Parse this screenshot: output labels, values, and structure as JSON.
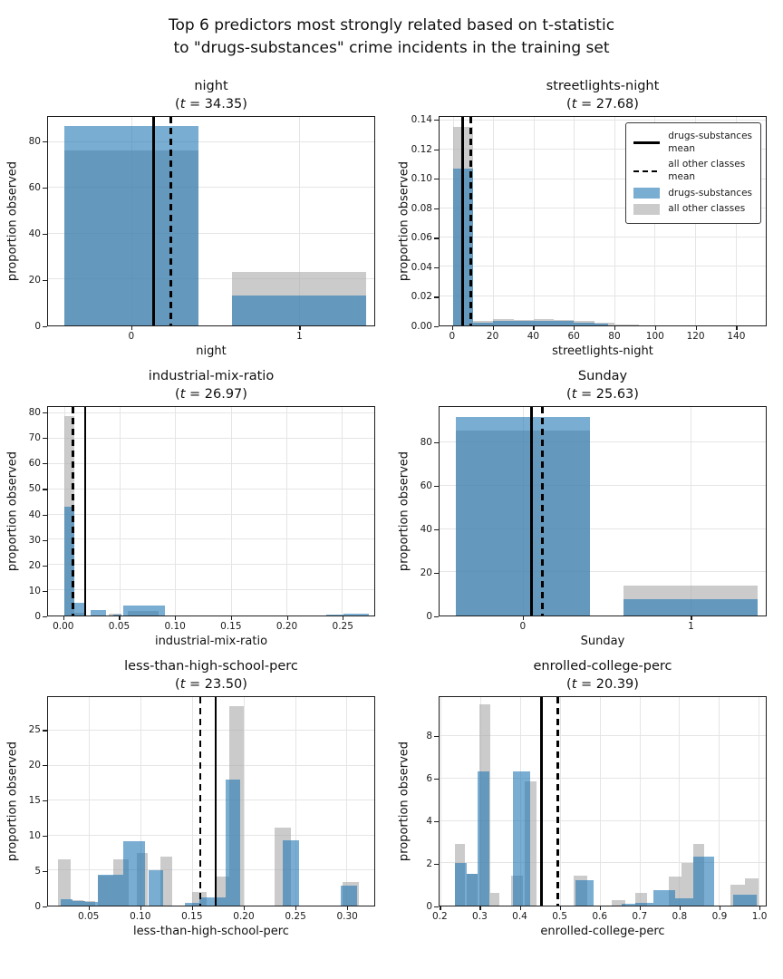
{
  "figure": {
    "title_line1": "Top 6 predictors most strongly related based on t-statistic",
    "title_line2": "to \"drugs-substances\" crime incidents in the training set"
  },
  "colors": {
    "drugs_fill": "rgba(31,119,180,0.6)",
    "other_fill": "rgba(168,168,168,0.6)",
    "mean_line": "#000000",
    "grid": "#e5e5e5",
    "spine": "#1c1c1c"
  },
  "legend": {
    "entries": [
      {
        "sample": "solid-line",
        "label_lines": [
          "drugs-substances",
          "mean"
        ]
      },
      {
        "sample": "dashed-line",
        "label_lines": [
          "all other classes",
          "mean"
        ]
      },
      {
        "sample": "patch-drugs",
        "label_lines": [
          "drugs-substances"
        ]
      },
      {
        "sample": "patch-other",
        "label_lines": [
          "all other classes"
        ]
      }
    ]
  },
  "chart_data": [
    {
      "type": "histogram-overlay",
      "title": "night",
      "t_value": "34.35",
      "xlabel": "night",
      "ylabel": "proportion observed",
      "xlim": [
        -0.5,
        1.45
      ],
      "ymax": 91,
      "xticks": [
        0,
        1
      ],
      "xtick_labels": [
        "0",
        "1"
      ],
      "yticks": [
        0,
        20,
        40,
        60,
        80
      ],
      "ytick_labels": [
        "0",
        "20",
        "40",
        "60",
        "80"
      ],
      "mean_drugs": 0.13,
      "mean_other": 0.235,
      "drugs_bars": [
        [
          -0.4,
          0.4,
          87.0
        ],
        [
          0.6,
          1.4,
          13.0
        ]
      ],
      "other_bars": [
        [
          -0.4,
          0.4,
          76.5
        ],
        [
          0.6,
          1.4,
          23.5
        ]
      ],
      "show_legend": false
    },
    {
      "type": "histogram-overlay",
      "title": "streetlights-night",
      "t_value": "27.68",
      "xlabel": "streetlights-night",
      "ylabel": "proportion observed",
      "xlim": [
        -6.6,
        155
      ],
      "ymax": 0.1425,
      "xticks": [
        0,
        20,
        40,
        60,
        80,
        100,
        120,
        140
      ],
      "xtick_labels": [
        "0",
        "20",
        "40",
        "60",
        "80",
        "100",
        "120",
        "140"
      ],
      "yticks": [
        0,
        0.02,
        0.04,
        0.06,
        0.08,
        0.1,
        0.12,
        0.14
      ],
      "ytick_labels": [
        "0.00",
        "0.02",
        "0.04",
        "0.06",
        "0.08",
        "0.10",
        "0.12",
        "0.14"
      ],
      "mean_drugs": 4.8,
      "mean_other": 8.8,
      "drugs_bars": [
        [
          0,
          10,
          0.1075
        ],
        [
          10,
          20,
          0.002
        ],
        [
          20,
          30,
          0.003
        ],
        [
          30,
          40,
          0.003
        ],
        [
          40,
          50,
          0.003
        ],
        [
          50,
          60,
          0.0028
        ],
        [
          60,
          70,
          0.002
        ],
        [
          70,
          77,
          0.001
        ]
      ],
      "other_bars": [
        [
          0,
          10,
          0.136
        ],
        [
          10,
          20,
          0.003
        ],
        [
          20,
          30,
          0.0042
        ],
        [
          30,
          40,
          0.004
        ],
        [
          40,
          50,
          0.0042
        ],
        [
          50,
          60,
          0.0035
        ],
        [
          60,
          70,
          0.003
        ],
        [
          70,
          80,
          0.002
        ],
        [
          80,
          92,
          0.0008
        ]
      ],
      "show_legend": true
    },
    {
      "type": "histogram-overlay",
      "title": "industrial-mix-ratio",
      "t_value": "26.97",
      "xlabel": "industrial-mix-ratio",
      "ylabel": "proportion observed",
      "xlim": [
        -0.0144,
        0.279
      ],
      "ymax": 82.5,
      "xticks": [
        0,
        0.05,
        0.1,
        0.15,
        0.2,
        0.25
      ],
      "xtick_labels": [
        "0.00",
        "0.05",
        "0.10",
        "0.15",
        "0.20",
        "0.25"
      ],
      "yticks": [
        0,
        10,
        20,
        30,
        40,
        50,
        60,
        70,
        80
      ],
      "ytick_labels": [
        "0",
        "10",
        "20",
        "30",
        "40",
        "50",
        "60",
        "70",
        "80"
      ],
      "mean_drugs": 0.019,
      "mean_other": 0.008,
      "drugs_bars": [
        [
          0,
          0.0095,
          43
        ],
        [
          0.0095,
          0.019,
          5
        ],
        [
          0.024,
          0.038,
          2
        ],
        [
          0.044,
          0.052,
          0.4
        ],
        [
          0.053,
          0.091,
          4
        ],
        [
          0.236,
          0.251,
          0.35
        ],
        [
          0.251,
          0.274,
          0.8
        ]
      ],
      "other_bars": [
        [
          0,
          0.0095,
          79
        ],
        [
          0.0095,
          0.019,
          1.2
        ],
        [
          0.04,
          0.052,
          0.6
        ],
        [
          0.057,
          0.085,
          1.8
        ]
      ],
      "show_legend": false
    },
    {
      "type": "histogram-overlay",
      "title": "Sunday",
      "t_value": "25.63",
      "xlabel": "Sunday",
      "ylabel": "proportion observed",
      "xlim": [
        -0.5,
        1.45
      ],
      "ymax": 96.5,
      "xticks": [
        0,
        1
      ],
      "xtick_labels": [
        "0",
        "1"
      ],
      "yticks": [
        0,
        20,
        40,
        60,
        80
      ],
      "ytick_labels": [
        "0",
        "20",
        "40",
        "60",
        "80"
      ],
      "mean_drugs": 0.05,
      "mean_other": 0.115,
      "drugs_bars": [
        [
          -0.4,
          0.4,
          92.0
        ],
        [
          0.6,
          1.4,
          7.4
        ]
      ],
      "other_bars": [
        [
          -0.4,
          0.4,
          85.5
        ],
        [
          0.6,
          1.4,
          13.7
        ]
      ],
      "show_legend": false
    },
    {
      "type": "histogram-overlay",
      "title": "less-than-high-school-perc",
      "t_value": "23.50",
      "xlabel": "less-than-high-school-perc",
      "ylabel": "proportion observed",
      "xlim": [
        0.01,
        0.327
      ],
      "ymax": 29.8,
      "xticks": [
        0.05,
        0.1,
        0.15,
        0.2,
        0.25,
        0.3
      ],
      "xtick_labels": [
        "0.05",
        "0.10",
        "0.15",
        "0.20",
        "0.25",
        "0.30"
      ],
      "yticks": [
        0,
        5,
        10,
        15,
        20,
        25
      ],
      "ytick_labels": [
        "0",
        "5",
        "10",
        "15",
        "20",
        "25"
      ],
      "mean_drugs": 0.173,
      "mean_other": 0.158,
      "drugs_bars": [
        [
          0.022,
          0.034,
          0.9
        ],
        [
          0.034,
          0.046,
          0.65
        ],
        [
          0.046,
          0.058,
          0.55
        ],
        [
          0.058,
          0.083,
          4.4
        ],
        [
          0.083,
          0.104,
          9.2
        ],
        [
          0.108,
          0.122,
          5.0
        ],
        [
          0.143,
          0.157,
          0.4
        ],
        [
          0.157,
          0.17,
          1.2
        ],
        [
          0.17,
          0.183,
          1.2
        ],
        [
          0.183,
          0.197,
          18.0
        ],
        [
          0.238,
          0.254,
          9.3
        ],
        [
          0.294,
          0.31,
          2.8
        ]
      ],
      "other_bars": [
        [
          0.02,
          0.032,
          6.6
        ],
        [
          0.032,
          0.044,
          0.8
        ],
        [
          0.044,
          0.056,
          0.7
        ],
        [
          0.058,
          0.073,
          4.3
        ],
        [
          0.073,
          0.088,
          6.6
        ],
        [
          0.096,
          0.107,
          7.5
        ],
        [
          0.119,
          0.131,
          7.0
        ],
        [
          0.15,
          0.164,
          2.0
        ],
        [
          0.172,
          0.186,
          4.2
        ],
        [
          0.186,
          0.2,
          28.5
        ],
        [
          0.23,
          0.246,
          11.1
        ],
        [
          0.296,
          0.312,
          3.4
        ]
      ],
      "show_legend": false
    },
    {
      "type": "histogram-overlay",
      "title": "enrolled-college-perc",
      "t_value": "20.39",
      "xlabel": "enrolled-college-perc",
      "ylabel": "proportion observed",
      "xlim": [
        0.197,
        1.018
      ],
      "ymax": 9.85,
      "xticks": [
        0.2,
        0.3,
        0.4,
        0.5,
        0.6,
        0.7,
        0.8,
        0.9,
        1.0
      ],
      "xtick_labels": [
        "0.2",
        "0.3",
        "0.4",
        "0.5",
        "0.6",
        "0.7",
        "0.8",
        "0.9",
        "1.0"
      ],
      "yticks": [
        0,
        2,
        4,
        6,
        8
      ],
      "ytick_labels": [
        "0",
        "2",
        "4",
        "6",
        "8"
      ],
      "mean_drugs": 0.453,
      "mean_other": 0.494,
      "drugs_bars": [
        [
          0.235,
          0.265,
          2.0
        ],
        [
          0.265,
          0.292,
          1.5
        ],
        [
          0.293,
          0.322,
          6.35
        ],
        [
          0.381,
          0.425,
          6.35
        ],
        [
          0.538,
          0.585,
          1.2
        ],
        [
          0.655,
          0.69,
          0.1
        ],
        [
          0.69,
          0.735,
          0.15
        ],
        [
          0.735,
          0.79,
          0.73
        ],
        [
          0.79,
          0.835,
          0.35
        ],
        [
          0.835,
          0.888,
          2.3
        ],
        [
          0.935,
          0.995,
          0.5
        ]
      ],
      "other_bars": [
        [
          0.235,
          0.262,
          2.9
        ],
        [
          0.265,
          0.292,
          1.5
        ],
        [
          0.298,
          0.325,
          9.5
        ],
        [
          0.325,
          0.347,
          0.6
        ],
        [
          0.378,
          0.406,
          1.4
        ],
        [
          0.412,
          0.44,
          5.85
        ],
        [
          0.535,
          0.568,
          1.4
        ],
        [
          0.63,
          0.665,
          0.25
        ],
        [
          0.69,
          0.72,
          0.6
        ],
        [
          0.775,
          0.805,
          1.35
        ],
        [
          0.805,
          0.835,
          2.0
        ],
        [
          0.835,
          0.862,
          2.9
        ],
        [
          0.93,
          0.965,
          1.0
        ],
        [
          0.965,
          1.0,
          1.3
        ]
      ],
      "show_legend": false
    }
  ]
}
